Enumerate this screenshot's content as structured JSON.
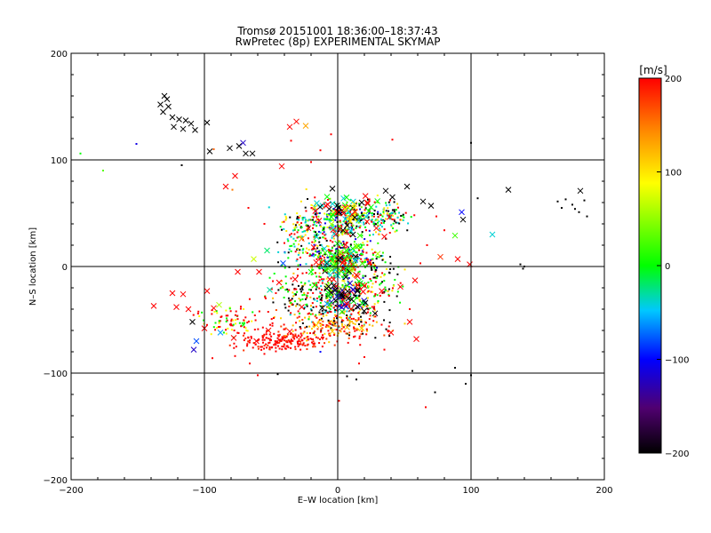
{
  "chart_data": {
    "type": "scatter",
    "title": "Tromsø 20151001 18:36:00–18:37:43",
    "subtitle": "RwPretec (8p) EXPERIMENTAL SKYMAP",
    "xlabel": "E–W location [km]",
    "ylabel": "N–S location [km]",
    "xlim": [
      -200,
      200
    ],
    "ylim": [
      -200,
      200
    ],
    "xticks": [
      -200,
      -100,
      0,
      100,
      200
    ],
    "yticks": [
      -200,
      -100,
      0,
      100,
      200
    ],
    "grid": "lines at ±100 and 0 km",
    "colorbar": {
      "label": "[m/s]",
      "range": [
        -200,
        200
      ],
      "ticks": [
        -200,
        -100,
        0,
        100,
        200
      ],
      "colormap": "rainbow (black → purple → blue → cyan → green → yellow → red)"
    },
    "series": [
      {
        "marker": "x",
        "points": [
          {
            "x": -130,
            "y": 160,
            "v": -200
          },
          {
            "x": -128,
            "y": 157,
            "v": -200
          },
          {
            "x": -133,
            "y": 152,
            "v": -200
          },
          {
            "x": -127,
            "y": 150,
            "v": -200
          },
          {
            "x": -131,
            "y": 145,
            "v": -200
          },
          {
            "x": -124,
            "y": 140,
            "v": -200
          },
          {
            "x": -119,
            "y": 138,
            "v": -200
          },
          {
            "x": -114,
            "y": 137,
            "v": -200
          },
          {
            "x": -110,
            "y": 134,
            "v": -200
          },
          {
            "x": -123,
            "y": 131,
            "v": -200
          },
          {
            "x": -116,
            "y": 129,
            "v": -200
          },
          {
            "x": -107,
            "y": 128,
            "v": -200
          },
          {
            "x": -98,
            "y": 135,
            "v": -200
          },
          {
            "x": -96,
            "y": 108,
            "v": -200
          },
          {
            "x": -81,
            "y": 111,
            "v": -200
          },
          {
            "x": -74,
            "y": 113,
            "v": -200
          },
          {
            "x": -69,
            "y": 106,
            "v": -200
          },
          {
            "x": -64,
            "y": 106,
            "v": -200
          },
          {
            "x": -71,
            "y": 116,
            "v": -120
          },
          {
            "x": -31,
            "y": 136,
            "v": 198
          },
          {
            "x": -36,
            "y": 131,
            "v": 205
          },
          {
            "x": -24,
            "y": 132,
            "v": 130
          },
          {
            "x": -42,
            "y": 94,
            "v": 200
          },
          {
            "x": -77,
            "y": 85,
            "v": 200
          },
          {
            "x": -84,
            "y": 75,
            "v": 200
          },
          {
            "x": -4,
            "y": 73,
            "v": -200
          },
          {
            "x": 36,
            "y": 71,
            "v": -200
          },
          {
            "x": 52,
            "y": 75,
            "v": -200
          },
          {
            "x": 41,
            "y": 65,
            "v": -200
          },
          {
            "x": 64,
            "y": 61,
            "v": -200
          },
          {
            "x": 70,
            "y": 57,
            "v": -200
          },
          {
            "x": 93,
            "y": 51,
            "v": -100
          },
          {
            "x": 94,
            "y": 44,
            "v": -200
          },
          {
            "x": 128,
            "y": 72,
            "v": -200
          },
          {
            "x": 182,
            "y": 71,
            "v": -200
          },
          {
            "x": 88,
            "y": 29,
            "v": 20
          },
          {
            "x": 116,
            "y": 30,
            "v": -40
          },
          {
            "x": 77,
            "y": 9,
            "v": 180
          },
          {
            "x": 90,
            "y": 7,
            "v": 200
          },
          {
            "x": 99,
            "y": 2,
            "v": 200
          },
          {
            "x": -20,
            "y": -5,
            "v": 0
          },
          {
            "x": 10,
            "y": 12,
            "v": -40
          },
          {
            "x": 2,
            "y": 8,
            "v": -200
          },
          {
            "x": -3,
            "y": -18,
            "v": -200
          },
          {
            "x": 8,
            "y": -30,
            "v": -200
          },
          {
            "x": -112,
            "y": -40,
            "v": 200
          },
          {
            "x": -121,
            "y": -38,
            "v": 200
          },
          {
            "x": -116,
            "y": -26,
            "v": 200
          },
          {
            "x": -124,
            "y": -25,
            "v": 200
          },
          {
            "x": -138,
            "y": -37,
            "v": 200
          },
          {
            "x": -98,
            "y": -23,
            "v": 200
          },
          {
            "x": -93,
            "y": -39,
            "v": 200
          },
          {
            "x": -109,
            "y": -52,
            "v": -200
          },
          {
            "x": -106,
            "y": -70,
            "v": -80
          },
          {
            "x": -108,
            "y": -78,
            "v": -120
          },
          {
            "x": -89,
            "y": -36,
            "v": 60
          },
          {
            "x": -100,
            "y": -58,
            "v": 200
          },
          {
            "x": -78,
            "y": -67,
            "v": 200
          },
          {
            "x": -88,
            "y": -62,
            "v": -60
          },
          {
            "x": -61,
            "y": -70,
            "v": 200
          },
          {
            "x": -52,
            "y": -60,
            "v": 200
          },
          {
            "x": -36,
            "y": -61,
            "v": 200
          },
          {
            "x": -16,
            "y": -55,
            "v": 110
          },
          {
            "x": -4,
            "y": -61,
            "v": 115
          },
          {
            "x": 7,
            "y": -57,
            "v": 120
          },
          {
            "x": 18,
            "y": -58,
            "v": 110
          },
          {
            "x": 40,
            "y": -62,
            "v": 200
          },
          {
            "x": 54,
            "y": -52,
            "v": 200
          },
          {
            "x": 59,
            "y": -68,
            "v": 200
          },
          {
            "x": 58,
            "y": -13,
            "v": 200
          },
          {
            "x": 47,
            "y": -19,
            "v": 200
          },
          {
            "x": 33,
            "y": -23,
            "v": 200
          },
          {
            "x": -51,
            "y": -22,
            "v": -30
          },
          {
            "x": -44,
            "y": -15,
            "v": 200
          },
          {
            "x": -63,
            "y": 7,
            "v": 70
          },
          {
            "x": -75,
            "y": -5,
            "v": 200
          },
          {
            "x": -59,
            "y": -5,
            "v": 200
          },
          {
            "x": -41,
            "y": 3,
            "v": -80
          },
          {
            "x": -27,
            "y": 26,
            "v": 150
          },
          {
            "x": -22,
            "y": 36,
            "v": 200
          },
          {
            "x": -14,
            "y": 43,
            "v": 200
          },
          {
            "x": -9,
            "y": 57,
            "v": 200
          },
          {
            "x": 13,
            "y": 51,
            "v": 170
          },
          {
            "x": 22,
            "y": 42,
            "v": 190
          },
          {
            "x": 29,
            "y": 36,
            "v": 200
          },
          {
            "x": 35,
            "y": 28,
            "v": 200
          },
          {
            "x": -53,
            "y": 15,
            "v": -20
          },
          {
            "x": 18,
            "y": 60,
            "v": -200
          },
          {
            "x": 4,
            "y": 34,
            "v": -200
          },
          {
            "x": 4,
            "y": -2,
            "v": 200
          },
          {
            "x": 14,
            "y": -8,
            "v": 200
          },
          {
            "x": -6,
            "y": -12,
            "v": 200
          },
          {
            "x": -18,
            "y": 18,
            "v": 200
          },
          {
            "x": 20,
            "y": -18,
            "v": 200
          },
          {
            "x": 24,
            "y": 4,
            "v": 200
          },
          {
            "x": -12,
            "y": 4,
            "v": 200
          },
          {
            "x": -27,
            "y": -38,
            "v": 200
          },
          {
            "x": -32,
            "y": -12,
            "v": 200
          },
          {
            "x": 10,
            "y": -40,
            "v": 200
          },
          {
            "x": 28,
            "y": -44,
            "v": -200
          },
          {
            "x": -8,
            "y": -35,
            "v": -60
          },
          {
            "x": 30,
            "y": 12,
            "v": 60
          }
        ]
      },
      {
        "marker": "dot",
        "points": [
          {
            "x": -193,
            "y": 106,
            "v": 0
          },
          {
            "x": -176,
            "y": 90,
            "v": 30
          },
          {
            "x": -151,
            "y": 115,
            "v": -110
          },
          {
            "x": -117,
            "y": 95,
            "v": -200
          },
          {
            "x": -93,
            "y": 110,
            "v": 160
          },
          {
            "x": -35,
            "y": 118,
            "v": 200
          },
          {
            "x": -5,
            "y": 124,
            "v": 200
          },
          {
            "x": 41,
            "y": 119,
            "v": 200
          },
          {
            "x": 100,
            "y": 116,
            "v": -200
          },
          {
            "x": -13,
            "y": 109,
            "v": 200
          },
          {
            "x": -20,
            "y": 98,
            "v": 200
          },
          {
            "x": 165,
            "y": 61,
            "v": -200
          },
          {
            "x": 168,
            "y": 55,
            "v": -200
          },
          {
            "x": 171,
            "y": 63,
            "v": -200
          },
          {
            "x": 176,
            "y": 58,
            "v": -200
          },
          {
            "x": 178,
            "y": 54,
            "v": -200
          },
          {
            "x": 181,
            "y": 51,
            "v": -200
          },
          {
            "x": 187,
            "y": 47,
            "v": -200
          },
          {
            "x": 185,
            "y": 62,
            "v": -200
          },
          {
            "x": 137,
            "y": 2,
            "v": -200
          },
          {
            "x": 140,
            "y": 0,
            "v": -200
          },
          {
            "x": 139,
            "y": -2,
            "v": -200
          },
          {
            "x": 100,
            "y": -102,
            "v": -200
          },
          {
            "x": 96,
            "y": -110,
            "v": -200
          },
          {
            "x": 88,
            "y": -95,
            "v": -200
          },
          {
            "x": 73,
            "y": -118,
            "v": -200
          },
          {
            "x": 66,
            "y": -132,
            "v": 200
          },
          {
            "x": 56,
            "y": -98,
            "v": -200
          },
          {
            "x": 1,
            "y": -126,
            "v": 200
          },
          {
            "x": -45,
            "y": -101,
            "v": -200
          },
          {
            "x": 7,
            "y": -103,
            "v": -200
          },
          {
            "x": 14,
            "y": -106,
            "v": -200
          },
          {
            "x": -94,
            "y": -86,
            "v": 200
          },
          {
            "x": -77,
            "y": -84,
            "v": 200
          },
          {
            "x": -66,
            "y": -91,
            "v": 200
          },
          {
            "x": -55,
            "y": -82,
            "v": 200
          },
          {
            "x": -60,
            "y": -102,
            "v": 200
          },
          {
            "x": 16,
            "y": -91,
            "v": 200
          },
          {
            "x": 20,
            "y": -85,
            "v": 200
          },
          {
            "x": 35,
            "y": -78,
            "v": 200
          },
          {
            "x": -13,
            "y": -80,
            "v": -100
          },
          {
            "x": -30,
            "y": -72,
            "v": 200
          },
          {
            "x": 54,
            "y": -40,
            "v": 200
          },
          {
            "x": 62,
            "y": 3,
            "v": 200
          },
          {
            "x": 67,
            "y": 20,
            "v": 200
          },
          {
            "x": 80,
            "y": 34,
            "v": 200
          },
          {
            "x": 74,
            "y": 47,
            "v": 200
          },
          {
            "x": 105,
            "y": 64,
            "v": -200
          },
          {
            "x": -79,
            "y": 72,
            "v": 150
          },
          {
            "x": -67,
            "y": 55,
            "v": 200
          },
          {
            "x": -55,
            "y": 40,
            "v": 200
          },
          {
            "x": -40,
            "y": 22,
            "v": 200
          }
        ]
      }
    ],
    "clusters": [
      {
        "marker": "dot",
        "cx": 3,
        "cy": 45,
        "sx": 22,
        "sy": 12,
        "n": 260,
        "palette": [
          0,
          -40,
          40,
          90,
          200,
          -110,
          -200
        ]
      },
      {
        "marker": "dot",
        "cx": 0,
        "cy": 8,
        "sx": 20,
        "sy": 14,
        "n": 320,
        "palette": [
          0,
          20,
          -40,
          200,
          200,
          -200,
          -110,
          100
        ]
      },
      {
        "marker": "dot",
        "cx": 0,
        "cy": -30,
        "sx": 22,
        "sy": 14,
        "n": 240,
        "palette": [
          200,
          200,
          -200,
          0,
          100,
          -40
        ]
      },
      {
        "marker": "dot",
        "cx": 0,
        "cy": -55,
        "sx": 26,
        "sy": 9,
        "n": 200,
        "palette": [
          200,
          200,
          120,
          110,
          170,
          -200
        ]
      },
      {
        "marker": "dot",
        "cx": -40,
        "cy": -70,
        "sx": 22,
        "sy": 6,
        "n": 190,
        "palette": [
          200,
          200,
          200,
          180
        ]
      },
      {
        "marker": "dot",
        "cx": -78,
        "cy": -52,
        "sx": 18,
        "sy": 12,
        "n": 90,
        "palette": [
          200,
          200,
          90,
          0
        ]
      },
      {
        "marker": "dot",
        "cx": 34,
        "cy": 46,
        "sx": 14,
        "sy": 10,
        "n": 120,
        "palette": [
          -200,
          0,
          -40,
          100,
          200
        ]
      },
      {
        "marker": "dot",
        "cx": -25,
        "cy": 30,
        "sx": 14,
        "sy": 22,
        "n": 140,
        "palette": [
          200,
          0,
          -40,
          100,
          -200
        ]
      },
      {
        "marker": "dot",
        "cx": 28,
        "cy": -10,
        "sx": 14,
        "sy": 18,
        "n": 110,
        "palette": [
          200,
          -200,
          100,
          0
        ]
      },
      {
        "marker": "dot",
        "cx": -33,
        "cy": -25,
        "sx": 14,
        "sy": 16,
        "n": 90,
        "palette": [
          200,
          120,
          0,
          -200
        ]
      },
      {
        "marker": "x",
        "cx": 2,
        "cy": 5,
        "sx": 12,
        "sy": 22,
        "n": 90,
        "palette": [
          0,
          20,
          -40,
          200,
          -200,
          60
        ]
      },
      {
        "marker": "x",
        "cx": 6,
        "cy": -28,
        "sx": 12,
        "sy": 10,
        "n": 45,
        "palette": [
          -200,
          200,
          -120,
          0
        ]
      },
      {
        "marker": "x",
        "cx": 5,
        "cy": 50,
        "sx": 18,
        "sy": 10,
        "n": 55,
        "palette": [
          0,
          100,
          -40,
          200,
          -200
        ]
      }
    ]
  }
}
